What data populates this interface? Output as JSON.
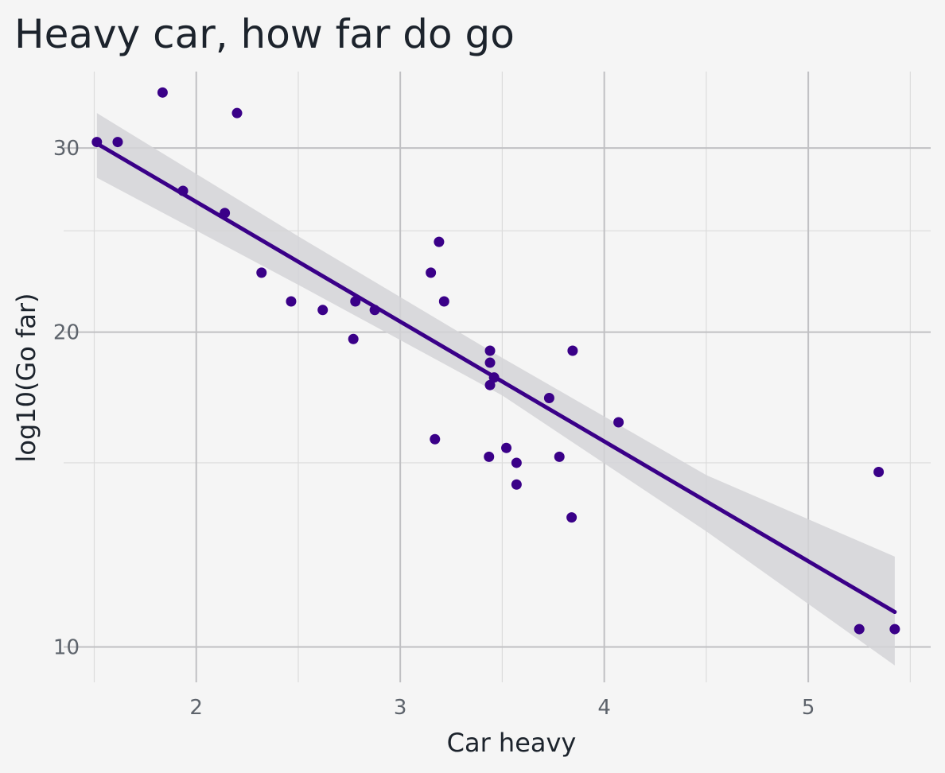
{
  "chart_data": {
    "type": "scatter",
    "title": "Heavy car, how far do go",
    "xlabel": "Car heavy",
    "ylabel": "log10(Go far)",
    "x_scale": "linear",
    "y_scale": "log10",
    "xlim": [
      1.35,
      5.6
    ],
    "ylim": [
      9.25,
      35.5
    ],
    "x_ticks": [
      2,
      3,
      4,
      5
    ],
    "x_tick_labels": [
      "2",
      "3",
      "4",
      "5"
    ],
    "y_ticks": [
      10,
      20,
      30
    ],
    "y_tick_labels": [
      "10",
      "20",
      "30"
    ],
    "grid": true,
    "legend": "none",
    "point_color": "#3a0088",
    "line_color": "#3a0088",
    "band_color": "#d3d4d7",
    "points": [
      {
        "x": 1.513,
        "y": 30.4
      },
      {
        "x": 1.615,
        "y": 30.4
      },
      {
        "x": 1.835,
        "y": 33.9
      },
      {
        "x": 1.935,
        "y": 27.3
      },
      {
        "x": 2.14,
        "y": 26.0
      },
      {
        "x": 2.2,
        "y": 32.4
      },
      {
        "x": 2.32,
        "y": 22.8
      },
      {
        "x": 2.465,
        "y": 21.4
      },
      {
        "x": 2.62,
        "y": 21.0
      },
      {
        "x": 2.77,
        "y": 19.7
      },
      {
        "x": 2.78,
        "y": 21.4
      },
      {
        "x": 2.875,
        "y": 21.0
      },
      {
        "x": 3.15,
        "y": 22.8
      },
      {
        "x": 3.17,
        "y": 15.8
      },
      {
        "x": 3.19,
        "y": 24.4
      },
      {
        "x": 3.215,
        "y": 21.4
      },
      {
        "x": 3.435,
        "y": 15.2
      },
      {
        "x": 3.44,
        "y": 19.2
      },
      {
        "x": 3.44,
        "y": 18.7
      },
      {
        "x": 3.44,
        "y": 17.8
      },
      {
        "x": 3.46,
        "y": 18.1
      },
      {
        "x": 3.52,
        "y": 15.5
      },
      {
        "x": 3.57,
        "y": 15.0
      },
      {
        "x": 3.57,
        "y": 14.3
      },
      {
        "x": 3.73,
        "y": 17.3
      },
      {
        "x": 3.78,
        "y": 15.2
      },
      {
        "x": 3.84,
        "y": 13.3
      },
      {
        "x": 3.845,
        "y": 19.2
      },
      {
        "x": 4.07,
        "y": 16.4
      },
      {
        "x": 5.25,
        "y": 10.4
      },
      {
        "x": 5.345,
        "y": 14.7
      },
      {
        "x": 5.424,
        "y": 10.4
      }
    ],
    "fit_line": {
      "x": [
        1.513,
        5.424
      ],
      "y": [
        30.3,
        10.8
      ]
    },
    "confidence_band": {
      "x": [
        1.513,
        2.5,
        3.5,
        4.5,
        5.424
      ],
      "upper": [
        32.4,
        24.7,
        18.9,
        14.6,
        12.2
      ],
      "lower": [
        28.1,
        22.2,
        17.4,
        12.9,
        9.6
      ]
    }
  }
}
